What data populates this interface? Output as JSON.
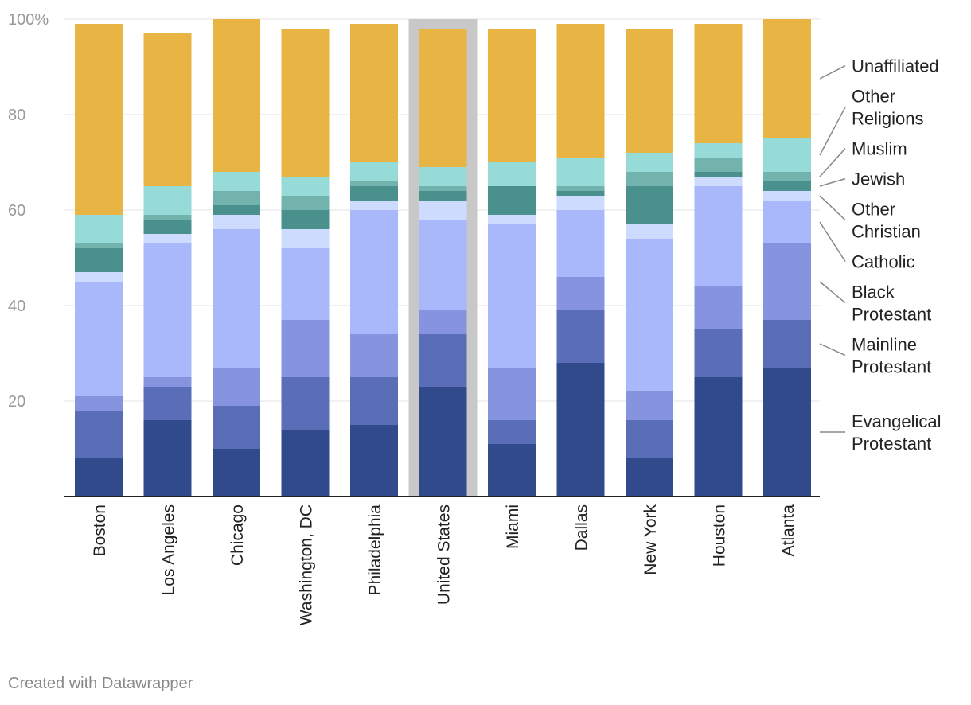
{
  "chart_data": {
    "type": "bar",
    "stacked": true,
    "title": "",
    "xlabel": "",
    "ylabel": "",
    "ylim": [
      0,
      100
    ],
    "yticks": [
      {
        "value": 20,
        "label": "20"
      },
      {
        "value": 40,
        "label": "40"
      },
      {
        "value": 60,
        "label": "60"
      },
      {
        "value": 80,
        "label": "80"
      },
      {
        "value": 100,
        "label": "100%"
      }
    ],
    "categories": [
      "Boston",
      "Los Angeles",
      "Chicago",
      "Washington, DC",
      "Philadelphia",
      "United States",
      "Miami",
      "Dallas",
      "New York",
      "Houston",
      "Atlanta"
    ],
    "highlighted_category": "United States",
    "series": [
      {
        "name": "Evangelical Protestant",
        "label_lines": [
          "Evangelical",
          "Protestant"
        ],
        "color": "#304a8c",
        "values": [
          8,
          16,
          10,
          14,
          15,
          23,
          11,
          28,
          8,
          25,
          27
        ]
      },
      {
        "name": "Mainline Protestant",
        "label_lines": [
          "Mainline",
          "Protestant"
        ],
        "color": "#5a6eb8",
        "values": [
          10,
          7,
          9,
          11,
          10,
          11,
          5,
          11,
          8,
          10,
          10
        ]
      },
      {
        "name": "Black Protestant",
        "label_lines": [
          "Black",
          "Protestant"
        ],
        "color": "#8694df",
        "values": [
          3,
          2,
          8,
          12,
          9,
          5,
          11,
          7,
          6,
          9,
          16
        ]
      },
      {
        "name": "Catholic",
        "label_lines": [
          "Catholic"
        ],
        "color": "#a9b7fb",
        "values": [
          24,
          28,
          29,
          15,
          26,
          19,
          30,
          14,
          32,
          21,
          9
        ]
      },
      {
        "name": "Other Christian",
        "label_lines": [
          "Other",
          "Christian"
        ],
        "color": "#cddbff",
        "values": [
          2,
          2,
          3,
          4,
          2,
          4,
          2,
          3,
          3,
          2,
          2
        ]
      },
      {
        "name": "Jewish",
        "label_lines": [
          "Jewish"
        ],
        "color": "#4a918d",
        "values": [
          5,
          3,
          2,
          4,
          3,
          2,
          6,
          1,
          8,
          1,
          2
        ]
      },
      {
        "name": "Muslim",
        "label_lines": [
          "Muslim"
        ],
        "color": "#73b3ad",
        "values": [
          1,
          1,
          3,
          3,
          1,
          1,
          0,
          1,
          3,
          3,
          2
        ]
      },
      {
        "name": "Other Religions",
        "label_lines": [
          "Other",
          "Religions"
        ],
        "color": "#96dbd8",
        "values": [
          6,
          6,
          4,
          4,
          4,
          4,
          5,
          6,
          4,
          3,
          7
        ]
      },
      {
        "name": "Unaffiliated",
        "label_lines": [
          "Unaffiliated"
        ],
        "color": "#e8b443",
        "values": [
          40,
          32,
          32,
          31,
          29,
          29,
          28,
          28,
          26,
          25,
          25
        ]
      }
    ]
  },
  "footer": {
    "credit": "Created with Datawrapper"
  }
}
